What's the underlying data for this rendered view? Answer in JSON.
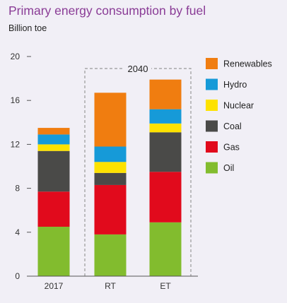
{
  "title": "Primary energy consumption by fuel",
  "unit_label": "Billion toe",
  "bracket_label": "2040",
  "colors": {
    "Oil": "#82bc2e",
    "Gas": "#e10a1c",
    "Coal": "#4a4a48",
    "Nuclear": "#fde200",
    "Hydro": "#169ad8",
    "Renewables": "#f07d10",
    "axis": "#555555",
    "gridline": "#d9d6e3",
    "bracket": "#999999"
  },
  "chart_data": {
    "type": "bar",
    "stacked": true,
    "categories": [
      "2017",
      "RT",
      "ET"
    ],
    "series": [
      {
        "name": "Oil",
        "values": [
          4.5,
          3.8,
          4.9
        ]
      },
      {
        "name": "Gas",
        "values": [
          3.2,
          4.5,
          4.6
        ]
      },
      {
        "name": "Coal",
        "values": [
          3.7,
          1.1,
          3.6
        ]
      },
      {
        "name": "Nuclear",
        "values": [
          0.6,
          1.0,
          0.8
        ]
      },
      {
        "name": "Hydro",
        "values": [
          0.9,
          1.4,
          1.3
        ]
      },
      {
        "name": "Renewables",
        "values": [
          0.6,
          4.9,
          2.7
        ]
      }
    ],
    "ylim": [
      0,
      20
    ],
    "yticks": [
      0,
      4,
      8,
      12,
      16,
      20
    ],
    "legend": [
      "Renewables",
      "Hydro",
      "Nuclear",
      "Coal",
      "Gas",
      "Oil"
    ],
    "legend_position": "right",
    "grid": false
  }
}
